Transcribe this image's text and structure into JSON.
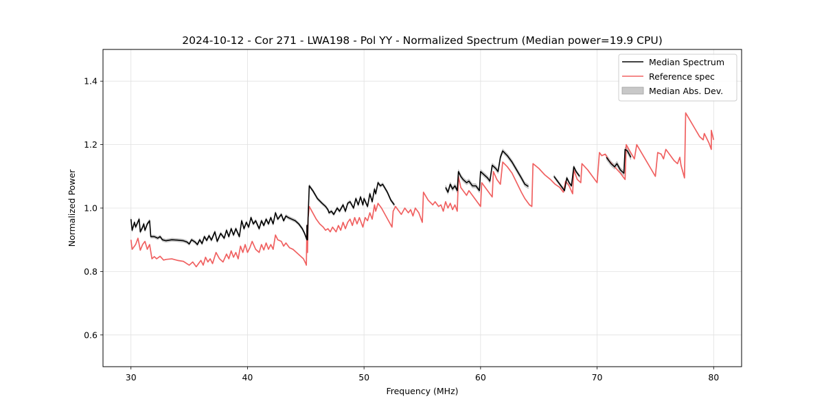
{
  "chart_data": {
    "type": "line",
    "title": "2024-10-12 - Cor 271 - LWA198 - Pol YY - Normalized Spectrum (Median power=19.9 CPU)",
    "xlabel": "Frequency (MHz)",
    "ylabel": "Normalized Power",
    "xlim": [
      27.6,
      82.4
    ],
    "ylim": [
      0.5,
      1.5
    ],
    "xticks": [
      30,
      40,
      50,
      60,
      70,
      80
    ],
    "yticks": [
      0.6,
      0.8,
      1.0,
      1.2,
      1.4
    ],
    "xtick_labels": [
      "30",
      "40",
      "50",
      "60",
      "70",
      "80"
    ],
    "ytick_labels": [
      "0.6",
      "0.8",
      "1.0",
      "1.2",
      "1.4"
    ],
    "grid": true,
    "legend_position": "top-right",
    "legend": [
      "Median Spectrum",
      "Reference spec",
      "Median Abs. Dev."
    ],
    "colors": {
      "median": "#000000",
      "reference": "#f06060",
      "mad": "#c8c8c8"
    },
    "median_segments": [
      [
        [
          30.0,
          0.965
        ],
        [
          30.1,
          0.93
        ],
        [
          30.3,
          0.955
        ],
        [
          30.4,
          0.94
        ],
        [
          30.7,
          0.965
        ],
        [
          30.8,
          0.925
        ],
        [
          31.0,
          0.94
        ],
        [
          31.1,
          0.95
        ],
        [
          31.2,
          0.93
        ],
        [
          31.4,
          0.95
        ],
        [
          31.6,
          0.96
        ],
        [
          31.7,
          0.91
        ],
        [
          32.0,
          0.91
        ],
        [
          32.3,
          0.905
        ],
        [
          32.5,
          0.91
        ],
        [
          32.7,
          0.9
        ],
        [
          33.0,
          0.897
        ],
        [
          33.5,
          0.9
        ],
        [
          34.0,
          0.899
        ],
        [
          34.5,
          0.897
        ],
        [
          34.8,
          0.893
        ],
        [
          35.0,
          0.887
        ],
        [
          35.2,
          0.9
        ],
        [
          35.5,
          0.893
        ],
        [
          35.7,
          0.885
        ],
        [
          35.9,
          0.9
        ],
        [
          36.1,
          0.888
        ],
        [
          36.3,
          0.91
        ],
        [
          36.5,
          0.898
        ],
        [
          36.7,
          0.913
        ],
        [
          36.9,
          0.899
        ],
        [
          37.2,
          0.925
        ],
        [
          37.4,
          0.895
        ],
        [
          37.7,
          0.92
        ],
        [
          38.0,
          0.905
        ],
        [
          38.2,
          0.93
        ],
        [
          38.4,
          0.91
        ],
        [
          38.6,
          0.935
        ],
        [
          38.8,
          0.915
        ],
        [
          39.0,
          0.935
        ],
        [
          39.3,
          0.91
        ],
        [
          39.5,
          0.96
        ],
        [
          39.7,
          0.935
        ],
        [
          39.9,
          0.955
        ],
        [
          40.1,
          0.94
        ],
        [
          40.3,
          0.97
        ],
        [
          40.5,
          0.95
        ],
        [
          40.7,
          0.96
        ],
        [
          41.0,
          0.935
        ],
        [
          41.2,
          0.96
        ],
        [
          41.4,
          0.945
        ],
        [
          41.6,
          0.965
        ],
        [
          41.8,
          0.95
        ],
        [
          42.0,
          0.97
        ],
        [
          42.2,
          0.95
        ],
        [
          42.4,
          0.985
        ],
        [
          42.6,
          0.965
        ],
        [
          42.9,
          0.98
        ],
        [
          43.1,
          0.96
        ],
        [
          43.3,
          0.975
        ],
        [
          43.5,
          0.97
        ],
        [
          43.8,
          0.965
        ],
        [
          44.1,
          0.96
        ],
        [
          44.4,
          0.95
        ],
        [
          44.7,
          0.935
        ],
        [
          44.9,
          0.92
        ],
        [
          45.1,
          0.9
        ],
        [
          45.1,
          0.945
        ],
        [
          45.15,
          0.9
        ],
        [
          45.2,
          0.97
        ],
        [
          45.3,
          1.07
        ],
        [
          45.6,
          1.055
        ],
        [
          46.0,
          1.03
        ],
        [
          46.4,
          1.015
        ],
        [
          46.7,
          1.005
        ],
        [
          46.9,
          0.995
        ],
        [
          47.0,
          0.985
        ],
        [
          47.2,
          0.99
        ],
        [
          47.4,
          0.98
        ],
        [
          47.7,
          1.0
        ],
        [
          47.9,
          0.99
        ],
        [
          48.2,
          1.01
        ],
        [
          48.4,
          0.99
        ],
        [
          48.6,
          1.015
        ],
        [
          48.8,
          1.02
        ],
        [
          49.1,
          1.0
        ],
        [
          49.3,
          1.03
        ],
        [
          49.5,
          1.01
        ],
        [
          49.7,
          1.035
        ],
        [
          49.9,
          1.01
        ],
        [
          50.0,
          1.03
        ],
        [
          50.3,
          1.005
        ],
        [
          50.5,
          1.045
        ],
        [
          50.7,
          1.02
        ],
        [
          50.9,
          1.06
        ],
        [
          51.0,
          1.045
        ],
        [
          51.2,
          1.08
        ],
        [
          51.4,
          1.07
        ],
        [
          51.6,
          1.075
        ],
        [
          52.0,
          1.05
        ],
        [
          52.3,
          1.025
        ],
        [
          52.6,
          1.01
        ]
      ],
      [
        [
          57.0,
          1.065
        ],
        [
          57.2,
          1.05
        ],
        [
          57.4,
          1.075
        ],
        [
          57.6,
          1.06
        ],
        [
          57.8,
          1.07
        ],
        [
          58.0,
          1.055
        ],
        [
          58.1,
          1.115
        ],
        [
          58.3,
          1.1
        ],
        [
          58.5,
          1.09
        ],
        [
          58.8,
          1.08
        ],
        [
          59.0,
          1.085
        ],
        [
          59.3,
          1.07
        ],
        [
          59.6,
          1.07
        ],
        [
          59.9,
          1.055
        ],
        [
          60.0,
          1.115
        ],
        [
          60.3,
          1.105
        ],
        [
          60.6,
          1.095
        ],
        [
          60.8,
          1.085
        ],
        [
          61.0,
          1.135
        ],
        [
          61.3,
          1.125
        ],
        [
          61.5,
          1.115
        ],
        [
          61.7,
          1.16
        ],
        [
          61.9,
          1.18
        ],
        [
          62.3,
          1.165
        ],
        [
          62.7,
          1.145
        ],
        [
          63.1,
          1.12
        ],
        [
          63.5,
          1.095
        ],
        [
          63.8,
          1.075
        ],
        [
          64.1,
          1.068
        ]
      ],
      [
        [
          66.3,
          1.1
        ],
        [
          66.6,
          1.085
        ],
        [
          66.9,
          1.07
        ],
        [
          67.2,
          1.055
        ],
        [
          67.4,
          1.095
        ],
        [
          67.6,
          1.08
        ],
        [
          67.8,
          1.07
        ],
        [
          68.0,
          1.13
        ],
        [
          68.2,
          1.115
        ],
        [
          68.5,
          1.1
        ]
      ],
      [
        [
          70.8,
          1.16
        ],
        [
          71.0,
          1.15
        ],
        [
          71.2,
          1.14
        ],
        [
          71.5,
          1.13
        ],
        [
          71.7,
          1.14
        ],
        [
          72.0,
          1.12
        ],
        [
          72.3,
          1.11
        ],
        [
          72.4,
          1.185
        ],
        [
          72.6,
          1.18
        ],
        [
          72.9,
          1.16
        ]
      ]
    ],
    "reference_segments": [
      [
        [
          30.0,
          0.9
        ],
        [
          30.1,
          0.87
        ],
        [
          30.4,
          0.885
        ],
        [
          30.6,
          0.905
        ],
        [
          30.8,
          0.867
        ],
        [
          31.0,
          0.885
        ],
        [
          31.2,
          0.895
        ],
        [
          31.4,
          0.87
        ],
        [
          31.6,
          0.885
        ],
        [
          31.8,
          0.84
        ],
        [
          32.0,
          0.847
        ],
        [
          32.2,
          0.84
        ],
        [
          32.5,
          0.848
        ],
        [
          32.8,
          0.836
        ],
        [
          33.0,
          0.838
        ],
        [
          33.5,
          0.84
        ],
        [
          34.0,
          0.835
        ],
        [
          34.5,
          0.832
        ],
        [
          35.0,
          0.82
        ],
        [
          35.3,
          0.83
        ],
        [
          35.6,
          0.815
        ],
        [
          35.8,
          0.825
        ],
        [
          36.0,
          0.835
        ],
        [
          36.2,
          0.82
        ],
        [
          36.4,
          0.845
        ],
        [
          36.6,
          0.83
        ],
        [
          36.8,
          0.84
        ],
        [
          37.0,
          0.825
        ],
        [
          37.3,
          0.86
        ],
        [
          37.6,
          0.84
        ],
        [
          37.9,
          0.83
        ],
        [
          38.2,
          0.855
        ],
        [
          38.4,
          0.84
        ],
        [
          38.6,
          0.865
        ],
        [
          38.8,
          0.845
        ],
        [
          39.0,
          0.86
        ],
        [
          39.2,
          0.84
        ],
        [
          39.4,
          0.88
        ],
        [
          39.6,
          0.86
        ],
        [
          39.8,
          0.885
        ],
        [
          40.0,
          0.86
        ],
        [
          40.2,
          0.875
        ],
        [
          40.4,
          0.895
        ],
        [
          40.7,
          0.87
        ],
        [
          41.0,
          0.86
        ],
        [
          41.2,
          0.885
        ],
        [
          41.4,
          0.868
        ],
        [
          41.6,
          0.89
        ],
        [
          41.8,
          0.87
        ],
        [
          42.0,
          0.885
        ],
        [
          42.2,
          0.87
        ],
        [
          42.4,
          0.915
        ],
        [
          42.6,
          0.9
        ],
        [
          42.9,
          0.895
        ],
        [
          43.1,
          0.88
        ],
        [
          43.3,
          0.89
        ],
        [
          43.6,
          0.875
        ],
        [
          43.9,
          0.87
        ],
        [
          44.2,
          0.86
        ],
        [
          44.5,
          0.85
        ],
        [
          44.8,
          0.84
        ],
        [
          45.0,
          0.825
        ],
        [
          45.05,
          0.82
        ],
        [
          45.1,
          0.945
        ],
        [
          45.15,
          0.86
        ],
        [
          45.2,
          0.97
        ],
        [
          45.3,
          1.005
        ],
        [
          45.6,
          0.985
        ],
        [
          45.9,
          0.965
        ],
        [
          46.2,
          0.95
        ],
        [
          46.5,
          0.94
        ],
        [
          46.7,
          0.93
        ],
        [
          46.9,
          0.935
        ],
        [
          47.1,
          0.925
        ],
        [
          47.3,
          0.94
        ],
        [
          47.6,
          0.925
        ],
        [
          47.8,
          0.945
        ],
        [
          48.0,
          0.93
        ],
        [
          48.2,
          0.955
        ],
        [
          48.4,
          0.935
        ],
        [
          48.6,
          0.955
        ],
        [
          48.8,
          0.965
        ],
        [
          49.0,
          0.945
        ],
        [
          49.2,
          0.97
        ],
        [
          49.4,
          0.95
        ],
        [
          49.6,
          0.97
        ],
        [
          49.8,
          0.95
        ],
        [
          49.9,
          0.94
        ],
        [
          50.1,
          0.97
        ],
        [
          50.3,
          0.96
        ],
        [
          50.5,
          0.985
        ],
        [
          50.7,
          0.965
        ],
        [
          50.9,
          1.01
        ],
        [
          51.0,
          0.99
        ],
        [
          51.2,
          1.015
        ],
        [
          51.5,
          1.0
        ],
        [
          51.8,
          0.98
        ],
        [
          52.1,
          0.96
        ],
        [
          52.4,
          0.94
        ],
        [
          52.5,
          0.99
        ],
        [
          52.7,
          1.005
        ],
        [
          53.0,
          0.99
        ],
        [
          53.2,
          0.98
        ],
        [
          53.5,
          1.0
        ],
        [
          53.8,
          0.985
        ],
        [
          54.0,
          0.995
        ],
        [
          54.2,
          0.975
        ],
        [
          54.4,
          1.0
        ],
        [
          54.7,
          0.985
        ],
        [
          55.0,
          0.955
        ],
        [
          55.1,
          1.05
        ],
        [
          55.5,
          1.025
        ],
        [
          55.9,
          1.01
        ],
        [
          56.1,
          1.02
        ],
        [
          56.4,
          1.005
        ],
        [
          56.6,
          1.01
        ],
        [
          56.8,
          0.99
        ],
        [
          57.0,
          1.02
        ],
        [
          57.2,
          1.0
        ],
        [
          57.4,
          1.015
        ],
        [
          57.6,
          0.995
        ],
        [
          57.8,
          1.01
        ],
        [
          58.0,
          0.99
        ],
        [
          58.1,
          1.1
        ],
        [
          58.3,
          1.065
        ],
        [
          58.6,
          1.05
        ],
        [
          58.8,
          1.04
        ],
        [
          59.0,
          1.055
        ],
        [
          59.3,
          1.04
        ],
        [
          59.7,
          1.02
        ],
        [
          60.0,
          1.005
        ],
        [
          60.1,
          1.08
        ],
        [
          60.4,
          1.065
        ],
        [
          60.8,
          1.045
        ],
        [
          61.0,
          1.035
        ],
        [
          61.1,
          1.115
        ],
        [
          61.4,
          1.09
        ],
        [
          61.7,
          1.075
        ],
        [
          61.9,
          1.145
        ],
        [
          62.3,
          1.13
        ],
        [
          62.7,
          1.11
        ],
        [
          63.1,
          1.08
        ],
        [
          63.5,
          1.05
        ],
        [
          63.8,
          1.03
        ],
        [
          64.2,
          1.01
        ],
        [
          64.4,
          1.005
        ],
        [
          64.5,
          1.14
        ],
        [
          65.0,
          1.125
        ],
        [
          65.5,
          1.105
        ],
        [
          66.0,
          1.09
        ],
        [
          66.4,
          1.075
        ],
        [
          66.8,
          1.065
        ],
        [
          67.1,
          1.05
        ],
        [
          67.3,
          1.085
        ],
        [
          67.6,
          1.07
        ],
        [
          67.9,
          1.045
        ],
        [
          68.0,
          1.12
        ],
        [
          68.3,
          1.09
        ],
        [
          68.6,
          1.08
        ],
        [
          68.7,
          1.14
        ],
        [
          69.2,
          1.12
        ],
        [
          69.7,
          1.095
        ],
        [
          70.0,
          1.08
        ],
        [
          70.2,
          1.175
        ],
        [
          70.4,
          1.165
        ],
        [
          70.7,
          1.17
        ],
        [
          71.0,
          1.15
        ],
        [
          71.5,
          1.13
        ],
        [
          72.0,
          1.11
        ],
        [
          72.4,
          1.09
        ],
        [
          72.5,
          1.2
        ],
        [
          72.8,
          1.18
        ],
        [
          73.2,
          1.155
        ],
        [
          73.4,
          1.2
        ],
        [
          73.8,
          1.175
        ],
        [
          74.2,
          1.15
        ],
        [
          74.6,
          1.125
        ],
        [
          75.0,
          1.1
        ],
        [
          75.2,
          1.175
        ],
        [
          75.5,
          1.17
        ],
        [
          75.7,
          1.155
        ],
        [
          75.9,
          1.185
        ],
        [
          76.3,
          1.165
        ],
        [
          76.6,
          1.15
        ],
        [
          76.9,
          1.14
        ],
        [
          77.1,
          1.16
        ],
        [
          77.2,
          1.135
        ],
        [
          77.5,
          1.095
        ],
        [
          77.6,
          1.3
        ],
        [
          78.0,
          1.275
        ],
        [
          78.4,
          1.25
        ],
        [
          78.8,
          1.225
        ],
        [
          79.1,
          1.215
        ],
        [
          79.2,
          1.235
        ],
        [
          79.6,
          1.205
        ],
        [
          79.8,
          1.185
        ],
        [
          79.8,
          1.245
        ],
        [
          80.0,
          1.215
        ]
      ]
    ],
    "mad_halfwidth": [
      0.005,
      0.007,
      0.005,
      0.008
    ]
  }
}
